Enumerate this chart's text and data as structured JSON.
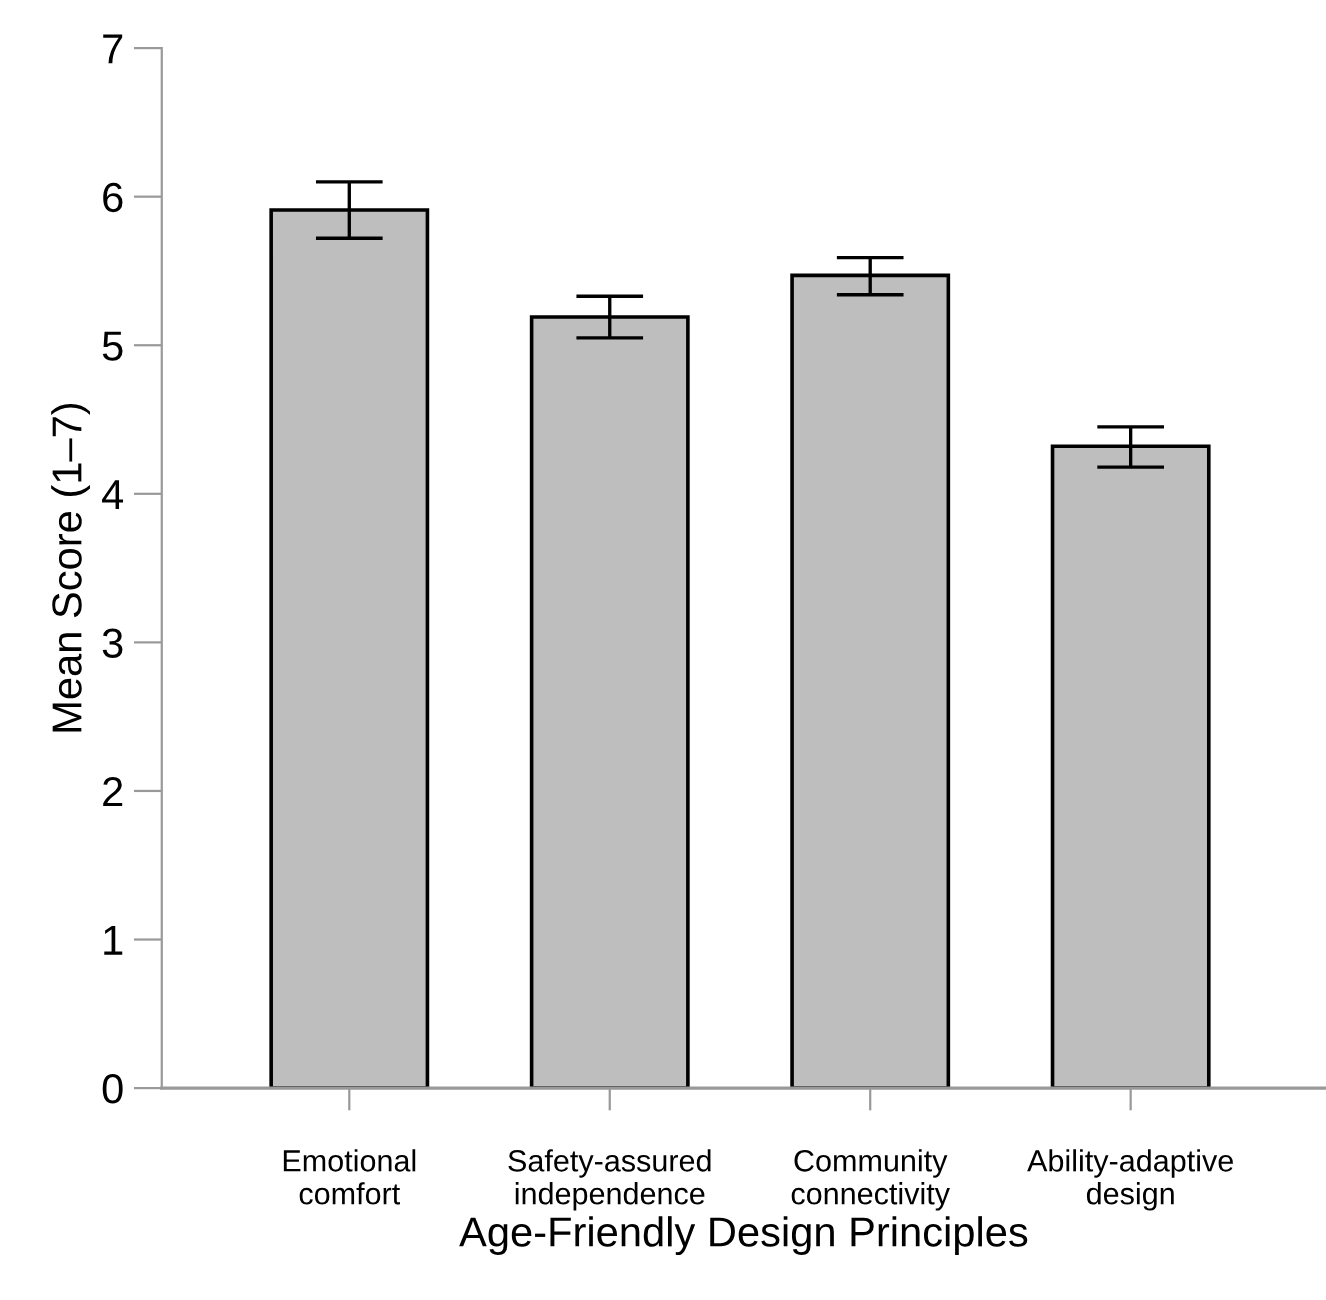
{
  "chart_data": {
    "type": "bar",
    "xlabel": "Age-Friendly Design Principles",
    "ylabel": "Mean Score (1–7)",
    "categories": [
      "Emotional\ncomfort",
      "Safety-assured\nindependence",
      "Community\nconnectivity",
      "Ability-adaptive\ndesign"
    ],
    "values": [
      5.91,
      5.19,
      5.47,
      4.32
    ],
    "errors": [
      [
        5.72,
        6.1
      ],
      [
        5.05,
        5.33
      ],
      [
        5.34,
        5.59
      ],
      [
        4.18,
        4.45
      ]
    ],
    "color": "#bebebe",
    "ylim": [
      0,
      7
    ],
    "yticks": [
      0,
      1,
      2,
      3,
      4,
      5,
      6,
      7
    ],
    "grid": false
  }
}
